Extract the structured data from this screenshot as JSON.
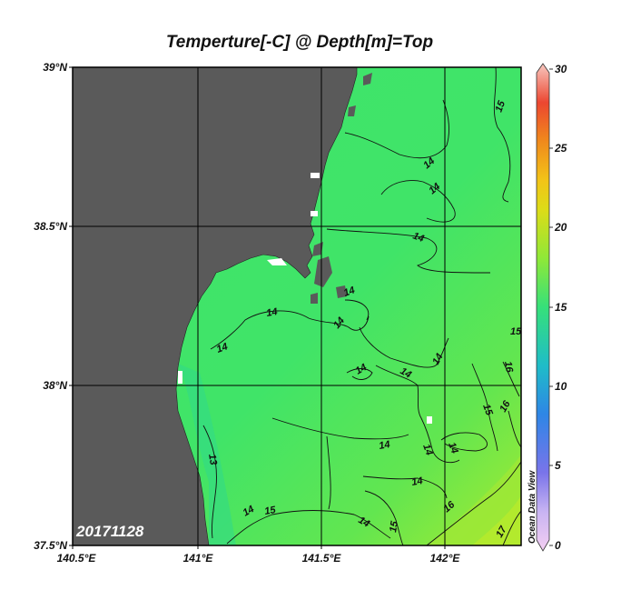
{
  "title": "Temperture[-C] @ Depth[m]=Top",
  "date_stamp": "20171128",
  "watermark": "Ocean Data View",
  "lat_labels": [
    "39°N",
    "38.5°N",
    "38°N",
    "37.5°N"
  ],
  "lon_labels": [
    "140.5°E",
    "141°E",
    "141.5°E",
    "142°E"
  ],
  "colorbar": {
    "ticks": [
      "30",
      "25",
      "20",
      "15",
      "10",
      "5",
      "0"
    ],
    "min": 0,
    "max": 30
  },
  "contour_labels": [
    "15",
    "14",
    "14",
    "14",
    "14",
    "14",
    "14",
    "14",
    "14",
    "14",
    "14",
    "14",
    "14",
    "14",
    "14",
    "14",
    "13",
    "15",
    "14",
    "15",
    "15",
    "16",
    "16",
    "16",
    "15",
    "17"
  ],
  "colors": {
    "land": "#5a5a5a",
    "sea_main": "#3de36a",
    "sea_warm": "#8ee83a",
    "sea_cool": "#2ad88a",
    "grid": "#000000"
  }
}
